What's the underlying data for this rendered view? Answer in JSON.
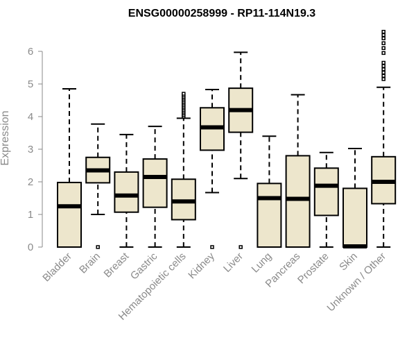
{
  "chart_data": {
    "type": "box",
    "title": "ENSG00000258999 - RP11-114N19.3",
    "ylabel": "Expression",
    "xlabel": "",
    "ylim": [
      0,
      6.7
    ],
    "yticks": [
      "0",
      "1",
      "2",
      "3",
      "4",
      "5",
      "6"
    ],
    "grid": false,
    "box_fill": "#ede6cc",
    "stroke": "#000000",
    "categories": [
      "Bladder",
      "Brain",
      "Breast",
      "Gastric",
      "Hematopoietic cells",
      "Kidney",
      "Liver",
      "Lung",
      "Pancreas",
      "Prostate",
      "Skin",
      "Unknown / Other"
    ],
    "boxes": [
      {
        "min": 0.0,
        "q1": 0.0,
        "median": 1.25,
        "q3": 1.98,
        "max": 4.85,
        "outliers": []
      },
      {
        "min": 1.0,
        "q1": 1.97,
        "median": 2.35,
        "q3": 2.75,
        "max": 3.77,
        "outliers": [
          0.0
        ]
      },
      {
        "min": 0.0,
        "q1": 1.07,
        "median": 1.58,
        "q3": 2.3,
        "max": 3.45,
        "outliers": []
      },
      {
        "min": 0.0,
        "q1": 1.22,
        "median": 2.15,
        "q3": 2.7,
        "max": 3.7,
        "outliers": []
      },
      {
        "min": 0.0,
        "q1": 0.84,
        "median": 1.4,
        "q3": 2.08,
        "max": 3.95,
        "outliers": [
          4.0,
          4.05,
          4.1,
          4.15,
          4.2,
          4.25,
          4.3,
          4.35,
          4.4,
          4.45,
          4.5,
          4.55,
          4.6,
          4.65,
          4.7
        ]
      },
      {
        "min": 1.67,
        "q1": 2.97,
        "median": 3.67,
        "q3": 4.27,
        "max": 4.83,
        "outliers": [
          0.0
        ]
      },
      {
        "min": 2.1,
        "q1": 3.52,
        "median": 4.2,
        "q3": 4.87,
        "max": 5.97,
        "outliers": [
          0.0
        ]
      },
      {
        "min": 0.0,
        "q1": 0.0,
        "median": 1.5,
        "q3": 1.95,
        "max": 3.4,
        "outliers": []
      },
      {
        "min": 0.0,
        "q1": 0.0,
        "median": 1.48,
        "q3": 2.8,
        "max": 4.67,
        "outliers": []
      },
      {
        "min": 0.0,
        "q1": 0.97,
        "median": 1.88,
        "q3": 2.42,
        "max": 2.9,
        "outliers": []
      },
      {
        "min": 0.0,
        "q1": 0.0,
        "median": 0.02,
        "q3": 1.8,
        "max": 3.02,
        "outliers": []
      },
      {
        "min": 0.0,
        "q1": 1.33,
        "median": 2.0,
        "q3": 2.77,
        "max": 4.9,
        "outliers": [
          5.15,
          5.25,
          5.35,
          5.45,
          5.55,
          5.65,
          5.95,
          6.1,
          6.25,
          6.4,
          6.5,
          6.6
        ]
      }
    ]
  }
}
